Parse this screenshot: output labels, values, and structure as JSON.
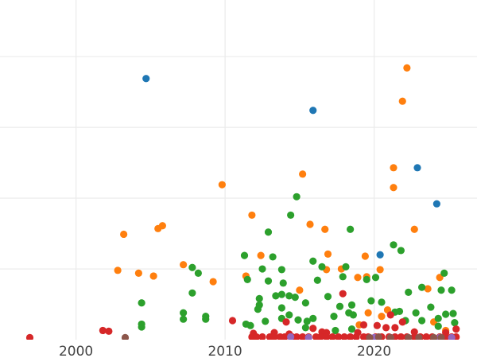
{
  "chart_data": {
    "type": "scatter",
    "title": "",
    "xlabel": "",
    "ylabel": "",
    "xlim": [
      1994.9,
      2026.9
    ],
    "ylim": [
      0,
      4.8
    ],
    "grid": true,
    "x_ticks": [
      2000,
      2010,
      2020
    ],
    "x_tick_labels": [
      "2000",
      "2010",
      "2020"
    ],
    "y_gridlines": [
      1,
      2,
      3,
      4
    ],
    "series": [
      {
        "color": "#1f77b4",
        "points": [
          [
            2004.7,
            3.69
          ],
          [
            2015.9,
            3.24
          ],
          [
            2022.9,
            2.43
          ],
          [
            2024.2,
            1.92
          ],
          [
            2020.4,
            1.2
          ]
        ]
      },
      {
        "color": "#ff7f0e",
        "points": [
          [
            2022.2,
            3.84
          ],
          [
            2021.9,
            3.37
          ],
          [
            2015.2,
            2.34
          ],
          [
            2009.8,
            2.19
          ],
          [
            2021.3,
            2.43
          ],
          [
            2021.3,
            2.15
          ],
          [
            2011.8,
            1.76
          ],
          [
            2015.7,
            1.63
          ],
          [
            2016.7,
            1.56
          ],
          [
            2022.7,
            1.56
          ],
          [
            2003.2,
            1.49
          ],
          [
            2005.5,
            1.57
          ],
          [
            2005.8,
            1.61
          ],
          [
            2007.2,
            1.06
          ],
          [
            2002.8,
            0.98
          ],
          [
            2004.2,
            0.94
          ],
          [
            2005.2,
            0.9
          ],
          [
            2009.2,
            0.82
          ],
          [
            2011.4,
            0.9
          ],
          [
            2012.4,
            1.19
          ],
          [
            2016.9,
            1.21
          ],
          [
            2019.4,
            1.18
          ],
          [
            2017.8,
            1.0
          ],
          [
            2016.8,
            0.99
          ],
          [
            2020.4,
            0.99
          ],
          [
            2018.9,
            0.88
          ],
          [
            2019.5,
            0.89
          ],
          [
            2015.0,
            0.7
          ],
          [
            2024.4,
            0.88
          ],
          [
            2023.6,
            0.72
          ],
          [
            2019.6,
            0.38
          ],
          [
            2020.5,
            0.33
          ],
          [
            2020.9,
            0.42
          ],
          [
            2019.0,
            0.21
          ],
          [
            2024.8,
            0.13
          ],
          [
            2024.0,
            0.25
          ]
        ]
      },
      {
        "color": "#2ca02c",
        "points": [
          [
            2014.8,
            2.02
          ],
          [
            2014.4,
            1.76
          ],
          [
            2012.9,
            1.52
          ],
          [
            2018.4,
            1.56
          ],
          [
            2021.3,
            1.34
          ],
          [
            2021.8,
            1.26
          ],
          [
            2011.3,
            1.19
          ],
          [
            2013.2,
            1.17
          ],
          [
            2023.2,
            0.74
          ],
          [
            2024.7,
            0.94
          ],
          [
            2025.2,
            0.7
          ],
          [
            2024.5,
            0.7
          ],
          [
            2019.5,
            0.85
          ],
          [
            2020.1,
            0.88
          ],
          [
            2017.9,
            0.89
          ],
          [
            2018.1,
            1.03
          ],
          [
            2015.9,
            1.11
          ],
          [
            2016.5,
            1.03
          ],
          [
            2016.2,
            0.84
          ],
          [
            2013.8,
            0.99
          ],
          [
            2012.5,
            1.0
          ],
          [
            2011.5,
            0.85
          ],
          [
            2012.9,
            0.83
          ],
          [
            2013.9,
            0.8
          ],
          [
            2016.9,
            0.61
          ],
          [
            2015.4,
            0.52
          ],
          [
            2013.4,
            0.62
          ],
          [
            2013.8,
            0.64
          ],
          [
            2014.3,
            0.62
          ],
          [
            2014.7,
            0.6
          ],
          [
            2017.7,
            0.47
          ],
          [
            2018.5,
            0.49
          ],
          [
            2012.3,
            0.58
          ],
          [
            2012.3,
            0.49
          ],
          [
            2012.2,
            0.43
          ],
          [
            2013.8,
            0.45
          ],
          [
            2012.7,
            0.26
          ],
          [
            2014.3,
            0.35
          ],
          [
            2013.8,
            0.3
          ],
          [
            2014.9,
            0.28
          ],
          [
            2015.5,
            0.26
          ],
          [
            2015.9,
            0.3
          ],
          [
            2017.3,
            0.33
          ],
          [
            2018.3,
            0.38
          ],
          [
            2018.6,
            0.35
          ],
          [
            2019.8,
            0.55
          ],
          [
            2020.5,
            0.53
          ],
          [
            2021.4,
            0.39
          ],
          [
            2021.7,
            0.4
          ],
          [
            2022.3,
            0.67
          ],
          [
            2022.8,
            0.38
          ],
          [
            2023.2,
            0.27
          ],
          [
            2023.8,
            0.46
          ],
          [
            2024.3,
            0.19
          ],
          [
            2024.8,
            0.36
          ],
          [
            2025.3,
            0.37
          ],
          [
            2025.4,
            0.24
          ],
          [
            2004.4,
            0.52
          ],
          [
            2004.4,
            0.22
          ],
          [
            2004.4,
            0.18
          ],
          [
            2007.2,
            0.38
          ],
          [
            2007.2,
            0.29
          ],
          [
            2007.8,
            0.66
          ],
          [
            2007.8,
            1.02
          ],
          [
            2008.2,
            0.94
          ],
          [
            2008.7,
            0.33
          ],
          [
            2008.7,
            0.29
          ],
          [
            2011.4,
            0.22
          ],
          [
            2011.7,
            0.2
          ],
          [
            2022.1,
            0.27
          ],
          [
            2015.4,
            0.17
          ],
          [
            2017.4,
            0.13
          ],
          [
            2018.5,
            0.15
          ],
          [
            2024.3,
            0.3
          ]
        ]
      },
      {
        "color": "#d62728",
        "points": [
          [
            1996.9,
            0.03
          ],
          [
            2001.8,
            0.13
          ],
          [
            2002.2,
            0.12
          ],
          [
            2010.5,
            0.27
          ],
          [
            2017.9,
            0.65
          ],
          [
            2021.1,
            0.35
          ],
          [
            2014.1,
            0.25
          ],
          [
            2019.3,
            0.21
          ],
          [
            2020.2,
            0.2
          ],
          [
            2020.8,
            0.17
          ],
          [
            2021.4,
            0.17
          ],
          [
            2021.9,
            0.25
          ],
          [
            2015.9,
            0.16
          ],
          [
            2016.5,
            0.11
          ],
          [
            2011.9,
            0.09
          ],
          [
            2013.3,
            0.1
          ],
          [
            2014.3,
            0.08
          ],
          [
            2016.8,
            0.1
          ],
          [
            2018.9,
            0.1
          ],
          [
            2022.7,
            0.11
          ],
          [
            2024.8,
            0.1
          ],
          [
            2025.5,
            0.15
          ],
          [
            2011.8,
            0.04
          ],
          [
            2012.1,
            0.04
          ],
          [
            2012.5,
            0.04
          ],
          [
            2013.0,
            0.04
          ],
          [
            2013.3,
            0.04
          ],
          [
            2013.7,
            0.04
          ],
          [
            2014.0,
            0.04
          ],
          [
            2014.5,
            0.04
          ],
          [
            2014.8,
            0.04
          ],
          [
            2015.2,
            0.04
          ],
          [
            2015.6,
            0.04
          ],
          [
            2016.1,
            0.04
          ],
          [
            2016.4,
            0.04
          ],
          [
            2016.8,
            0.04
          ],
          [
            2017.2,
            0.04
          ],
          [
            2017.6,
            0.04
          ],
          [
            2018.0,
            0.04
          ],
          [
            2018.4,
            0.04
          ],
          [
            2018.8,
            0.04
          ],
          [
            2019.3,
            0.04
          ],
          [
            2019.6,
            0.04
          ],
          [
            2020.1,
            0.04
          ],
          [
            2020.5,
            0.04
          ],
          [
            2021.0,
            0.04
          ],
          [
            2021.4,
            0.04
          ],
          [
            2021.8,
            0.04
          ],
          [
            2022.2,
            0.04
          ],
          [
            2022.7,
            0.04
          ],
          [
            2023.1,
            0.04
          ],
          [
            2023.5,
            0.04
          ],
          [
            2023.9,
            0.04
          ],
          [
            2024.4,
            0.04
          ],
          [
            2024.8,
            0.04
          ],
          [
            2025.2,
            0.04
          ],
          [
            2025.5,
            0.04
          ]
        ]
      },
      {
        "color": "#9467bd",
        "points": [
          [
            2014.4,
            0.04
          ],
          [
            2015.6,
            0.03
          ],
          [
            2020.0,
            0.03
          ],
          [
            2021.1,
            0.03
          ],
          [
            2024.4,
            0.03
          ],
          [
            2025.2,
            0.03
          ]
        ]
      },
      {
        "color": "#8c564b",
        "points": [
          [
            2003.3,
            0.03
          ],
          [
            2019.7,
            0.03
          ],
          [
            2020.3,
            0.04
          ],
          [
            2021.1,
            0.03
          ],
          [
            2022.3,
            0.03
          ],
          [
            2023.0,
            0.03
          ],
          [
            2024.0,
            0.03
          ],
          [
            2024.5,
            0.03
          ]
        ]
      }
    ]
  }
}
